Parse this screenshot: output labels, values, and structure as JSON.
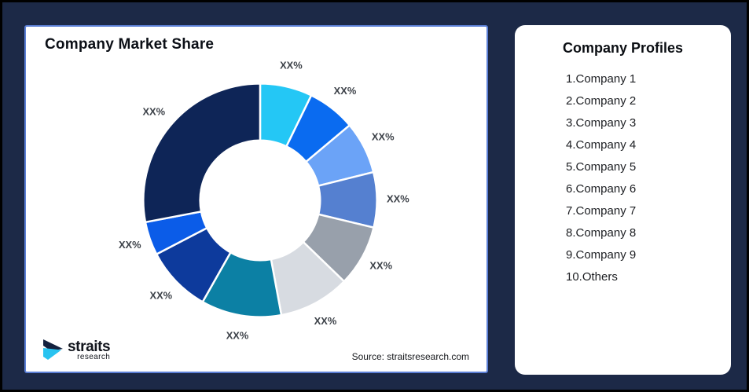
{
  "page": {
    "background_color": "#1c2947",
    "frame_border_color": "#000000"
  },
  "left_panel": {
    "title": "Company Market Share",
    "source": "Source: straitsresearch.com",
    "border_color": "#5b7fd6",
    "logo": {
      "name": "straits",
      "sub": "research"
    }
  },
  "right_panel": {
    "title": "Company Profiles",
    "items": [
      "1.Company 1",
      "2.Company 2",
      "3.Company 3",
      "4.Company 4",
      "5.Company 5",
      "6.Company 6",
      "7.Company 7",
      "8.Company 8",
      "9.Company 9",
      "10.Others"
    ]
  },
  "chart_data": {
    "type": "pie",
    "variant": "donut",
    "title": "Company Market Share",
    "legend_position": "none",
    "label_color": "#3d4249",
    "gap_stroke_color": "#ffffff",
    "start_angle_deg": 0,
    "direction": "clockwise",
    "segments": [
      {
        "name": "Company 1",
        "label": "XX%",
        "color": "#24c7f5",
        "angle_deg": 26.0,
        "value_pct": 7.2
      },
      {
        "name": "Company 2",
        "label": "XX%",
        "color": "#0a6bf0",
        "angle_deg": 24.0,
        "value_pct": 6.7
      },
      {
        "name": "Company 3",
        "label": "XX%",
        "color": "#6ba3f7",
        "angle_deg": 26.0,
        "value_pct": 7.2
      },
      {
        "name": "Company 4",
        "label": "XX%",
        "color": "#5580d0",
        "angle_deg": 27.5,
        "value_pct": 7.6
      },
      {
        "name": "Company 5",
        "label": "XX%",
        "color": "#98a0ab",
        "angle_deg": 30.5,
        "value_pct": 8.5
      },
      {
        "name": "Company 6",
        "label": "XX%",
        "color": "#d7dbe1",
        "angle_deg": 35.5,
        "value_pct": 9.9
      },
      {
        "name": "Company 7",
        "label": "XX%",
        "color": "#0c80a4",
        "angle_deg": 40.0,
        "value_pct": 11.1
      },
      {
        "name": "Company 8",
        "label": "XX%",
        "color": "#0d3a9c",
        "angle_deg": 33.0,
        "value_pct": 9.2
      },
      {
        "name": "Company 9",
        "label": "XX%",
        "color": "#0b5ce8",
        "angle_deg": 16.7,
        "value_pct": 4.6
      },
      {
        "name": "Others",
        "label": "XX%",
        "color": "#0e2557",
        "angle_deg": 100.8,
        "value_pct": 28.0
      }
    ]
  }
}
